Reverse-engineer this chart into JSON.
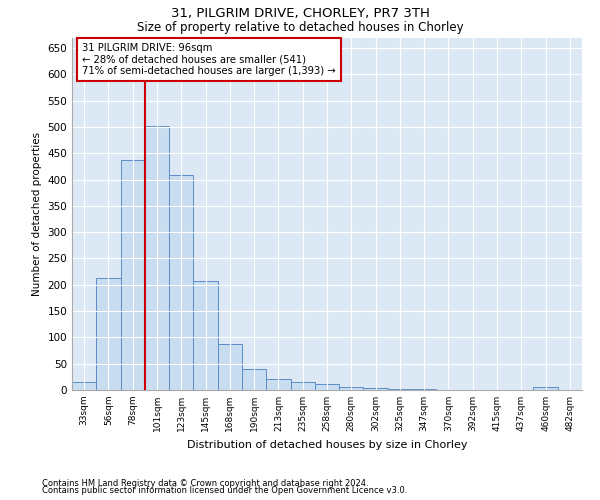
{
  "title1": "31, PILGRIM DRIVE, CHORLEY, PR7 3TH",
  "title2": "Size of property relative to detached houses in Chorley",
  "xlabel": "Distribution of detached houses by size in Chorley",
  "ylabel": "Number of detached properties",
  "bar_color": "#c9ddf0",
  "bar_edge_color": "#5b8cc8",
  "background_color": "#dce9f5",
  "categories": [
    "33sqm",
    "56sqm",
    "78sqm",
    "101sqm",
    "123sqm",
    "145sqm",
    "168sqm",
    "190sqm",
    "213sqm",
    "235sqm",
    "258sqm",
    "280sqm",
    "302sqm",
    "325sqm",
    "347sqm",
    "370sqm",
    "392sqm",
    "415sqm",
    "437sqm",
    "460sqm",
    "482sqm"
  ],
  "values": [
    15,
    213,
    437,
    502,
    408,
    207,
    88,
    40,
    20,
    16,
    11,
    6,
    4,
    2,
    1,
    0,
    0,
    0,
    0,
    5,
    0
  ],
  "ylim": [
    0,
    670
  ],
  "yticks": [
    0,
    50,
    100,
    150,
    200,
    250,
    300,
    350,
    400,
    450,
    500,
    550,
    600,
    650
  ],
  "annotation_text": "31 PILGRIM DRIVE: 96sqm\n← 28% of detached houses are smaller (541)\n71% of semi-detached houses are larger (1,393) →",
  "annotation_box_color": "#ffffff",
  "annotation_box_edge": "#cc0000",
  "red_line_color": "#cc0000",
  "footnote1": "Contains HM Land Registry data © Crown copyright and database right 2024.",
  "footnote2": "Contains public sector information licensed under the Open Government Licence v3.0."
}
